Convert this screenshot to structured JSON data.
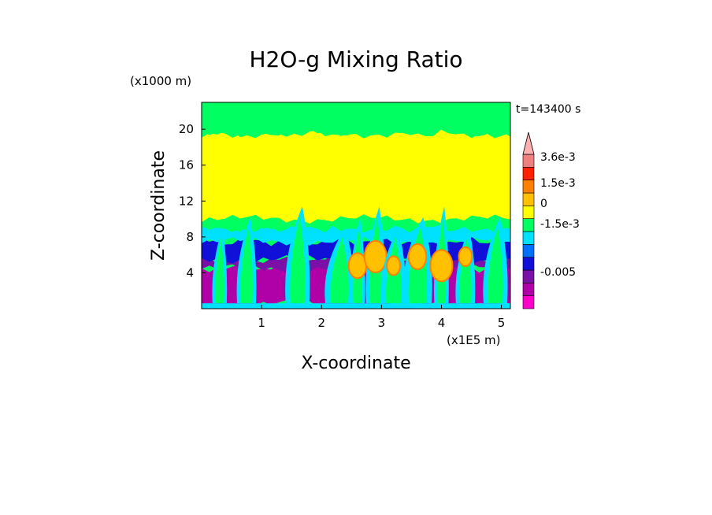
{
  "chart_data": {
    "type": "heatmap",
    "title": "H2O-g Mixing Ratio",
    "xlabel": "X-coordinate",
    "ylabel": "Z-coordinate",
    "x_unit": "(x1E5 m)",
    "y_unit": "(x1000 m)",
    "time_label": "t=143400 s",
    "xlim": [
      0,
      5.15
    ],
    "ylim": [
      0,
      23
    ],
    "x_ticks": [
      1,
      2,
      3,
      4,
      5
    ],
    "y_ticks": [
      4,
      8,
      12,
      16,
      20
    ],
    "colorbar": {
      "colors": [
        "#ff00cc",
        "#b000a8",
        "#7a10a8",
        "#1010d8",
        "#0070ff",
        "#00e0ff",
        "#00ff60",
        "#ffff00",
        "#ffc000",
        "#ff8000",
        "#ff2000",
        "#f08080",
        "#ffb0b0"
      ],
      "labels": [
        "3.6e-3",
        "1.5e-3",
        "0",
        "-1.5e-3",
        "-0.005"
      ]
    },
    "layers": [
      {
        "color": "#b000a8",
        "z_range": [
          0.5,
          4.5
        ]
      },
      {
        "color": "#7a10a8",
        "z_range": [
          4.5,
          5.5
        ]
      },
      {
        "color": "#1010d8",
        "z_range": [
          5.5,
          7.5
        ]
      },
      {
        "color": "#00e0ff",
        "z_range": [
          7.5,
          9
        ]
      },
      {
        "color": "#00ff60",
        "z_range": [
          9,
          10
        ]
      },
      {
        "color": "#ffff00",
        "z_range": [
          10,
          19.5
        ]
      },
      {
        "color": "#00ff60",
        "z_range": [
          19.5,
          23
        ]
      }
    ],
    "plumes_x": [
      0.3,
      0.75,
      1.6,
      2.3,
      2.6,
      2.9,
      3.2,
      3.6,
      4.0,
      4.4,
      4.9
    ]
  }
}
